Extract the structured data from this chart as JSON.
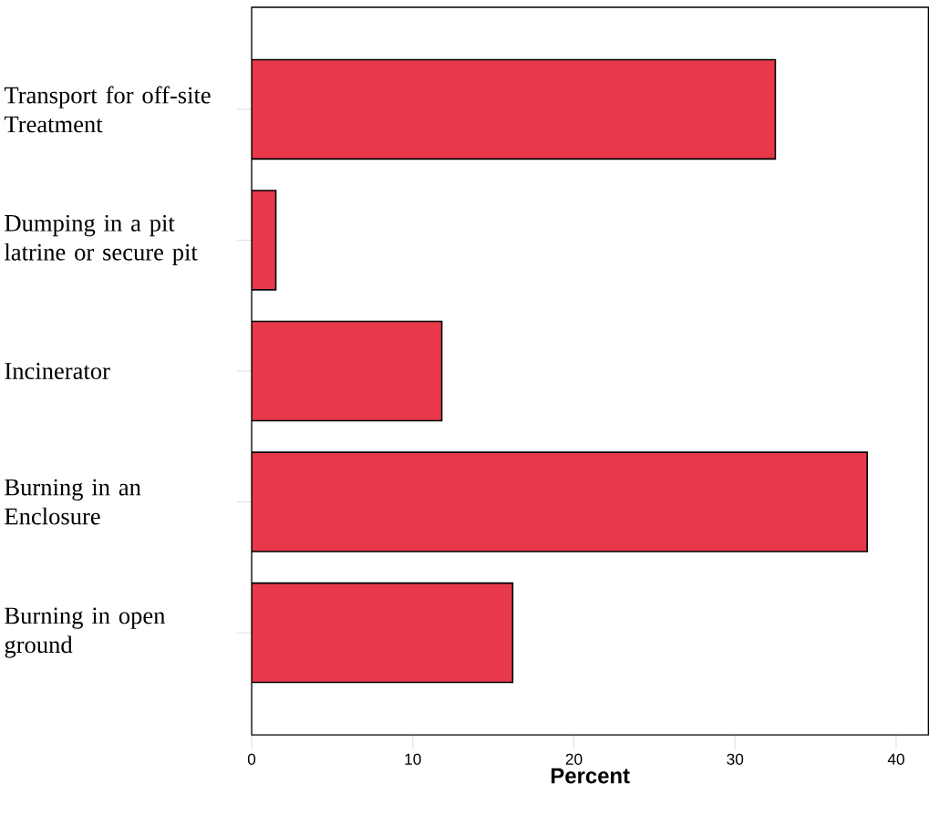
{
  "chart_data": {
    "type": "bar",
    "orientation": "horizontal",
    "xlabel": "Percent",
    "categories": [
      "Transport for off-site Treatment",
      "Dumping in a pit latrine or secure pit",
      "Incinerator",
      "Burning in an Enclosure",
      "Burning in open ground"
    ],
    "values": [
      32.5,
      1.5,
      11.8,
      38.2,
      16.2
    ],
    "color": "#e8394b",
    "xlim": [
      0,
      42
    ],
    "xticks": [
      0,
      10,
      20,
      30,
      40
    ]
  }
}
